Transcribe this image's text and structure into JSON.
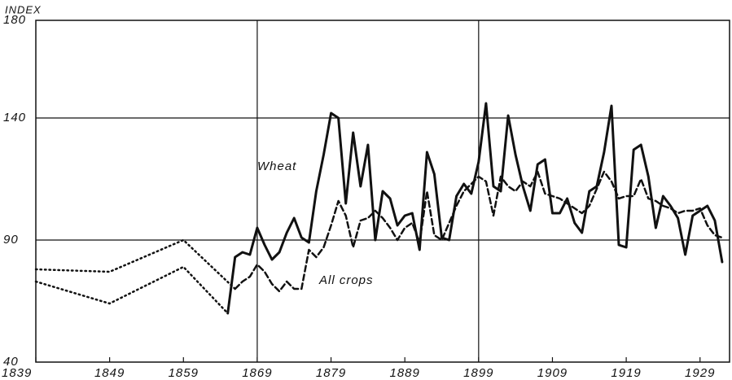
{
  "chart_data": {
    "type": "line",
    "y_axis_label": "INDEX",
    "annotations": [
      "Wheat",
      "All crops"
    ],
    "xlim": [
      1839,
      1933
    ],
    "xticks": [
      1839,
      1849,
      1859,
      1869,
      1879,
      1889,
      1899,
      1909,
      1919,
      1929
    ],
    "xgrid": [
      1869,
      1899
    ],
    "ylim": [
      40,
      180
    ],
    "yticks": [
      40,
      90,
      140,
      180
    ],
    "grid": true,
    "series": [
      {
        "name": "Wheat",
        "color": "#111111",
        "style": "solid",
        "x": [
          1865,
          1866,
          1867,
          1868,
          1869,
          1870,
          1871,
          1872,
          1873,
          1874,
          1875,
          1876,
          1877,
          1878,
          1879,
          1880,
          1881,
          1882,
          1883,
          1884,
          1885,
          1886,
          1887,
          1888,
          1889,
          1890,
          1891,
          1892,
          1893,
          1894,
          1895,
          1896,
          1897,
          1898,
          1899,
          1900,
          1901,
          1902,
          1903,
          1904,
          1905,
          1906,
          1907,
          1908,
          1909,
          1910,
          1911,
          1912,
          1913,
          1914,
          1915,
          1916,
          1917,
          1918,
          1919,
          1920,
          1921,
          1922,
          1923,
          1924,
          1925,
          1926,
          1927,
          1928,
          1929,
          1930,
          1931,
          1932
        ],
        "values": [
          60,
          83,
          85,
          84,
          95,
          88,
          82,
          85,
          93,
          99,
          91,
          89,
          110,
          125,
          142,
          140,
          105,
          134,
          112,
          129,
          90,
          110,
          107,
          96,
          100,
          101,
          86,
          126,
          117,
          91,
          90,
          108,
          113,
          109,
          122,
          146,
          112,
          110,
          141,
          125,
          112,
          102,
          121,
          123,
          101,
          101,
          107,
          97,
          93,
          110,
          112,
          126,
          145,
          88,
          87,
          127,
          129,
          116,
          95,
          108,
          104,
          99,
          84,
          100,
          102,
          104,
          98,
          81
        ]
      },
      {
        "color": "#111111",
        "style": "dotted",
        "x": [
          1839,
          1849,
          1859,
          1865
        ],
        "values": [
          73,
          64,
          79,
          60
        ]
      },
      {
        "name": "All crops",
        "color": "#111111",
        "style": "dashed",
        "x": [
          1866,
          1867,
          1868,
          1869,
          1870,
          1871,
          1872,
          1873,
          1874,
          1875,
          1876,
          1877,
          1878,
          1879,
          1880,
          1881,
          1882,
          1883,
          1884,
          1885,
          1886,
          1887,
          1888,
          1889,
          1890,
          1891,
          1892,
          1893,
          1894,
          1895,
          1896,
          1897,
          1898,
          1899,
          1900,
          1901,
          1902,
          1903,
          1904,
          1905,
          1906,
          1907,
          1908,
          1909,
          1910,
          1911,
          1912,
          1913,
          1914,
          1915,
          1916,
          1917,
          1918,
          1919,
          1920,
          1921,
          1922,
          1923,
          1924,
          1925,
          1926,
          1927,
          1928,
          1929,
          1930,
          1931,
          1932
        ],
        "values": [
          70,
          73,
          75,
          80,
          77,
          72,
          69,
          73,
          70,
          70,
          86,
          83,
          87,
          96,
          106,
          100,
          87,
          98,
          99,
          102,
          99,
          95,
          90,
          95,
          97,
          89,
          110,
          92,
          90,
          97,
          104,
          110,
          113,
          116,
          114,
          100,
          116,
          112,
          110,
          114,
          112,
          118,
          109,
          108,
          107,
          105,
          103,
          101,
          104,
          111,
          118,
          114,
          107,
          108,
          108,
          115,
          107,
          106,
          104,
          103,
          101,
          102,
          102,
          103,
          96,
          92,
          91
        ]
      },
      {
        "color": "#111111",
        "style": "dotted",
        "x": [
          1839,
          1849,
          1859,
          1866
        ],
        "values": [
          78,
          77,
          90,
          70
        ]
      }
    ]
  }
}
